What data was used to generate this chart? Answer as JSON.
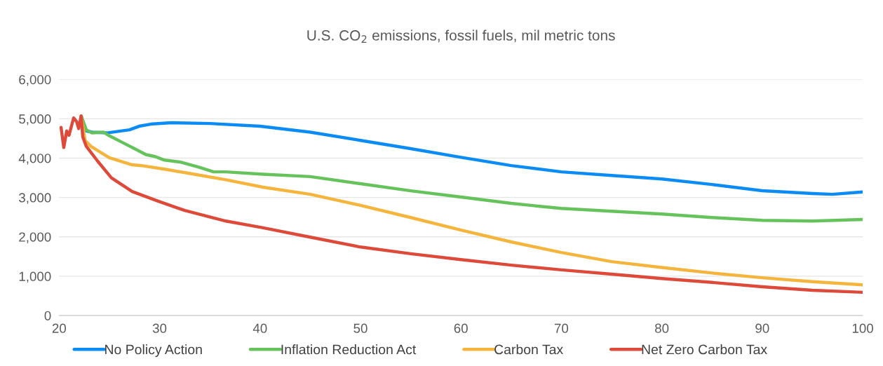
{
  "chart_data": {
    "type": "line",
    "title": "U.S. CO$_{2}$ emissions, fossil fuels, mil metric tons",
    "xlim": [
      20,
      100
    ],
    "xticks": [
      20,
      30,
      40,
      50,
      60,
      70,
      80,
      90,
      100
    ],
    "ylim": [
      0,
      6000
    ],
    "yticks": [
      {
        "value": 0,
        "label": "0"
      },
      {
        "value": 1000,
        "label": "1,000"
      },
      {
        "value": 2000,
        "label": "2,000"
      },
      {
        "value": 3000,
        "label": "3,000"
      },
      {
        "value": 4000,
        "label": "4,000"
      },
      {
        "value": 5000,
        "label": "5,000"
      },
      {
        "value": 6000,
        "label": "6,000"
      }
    ],
    "grid": "y",
    "legend": "bottom",
    "marker": "none",
    "line_style": "solid",
    "series": [
      {
        "name": "No Policy Action",
        "color": "#0b8cf5",
        "x": [
          22.19,
          22.7,
          23.27,
          24.75,
          27.0,
          27.96,
          29.3,
          31.2,
          35,
          40,
          45,
          50,
          55,
          60,
          65,
          70,
          75,
          80,
          85,
          90,
          95,
          97,
          100
        ],
        "values": [
          5070,
          4690,
          4660,
          4640,
          4720,
          4810,
          4870,
          4900,
          4880,
          4810,
          4660,
          4450,
          4240,
          4020,
          3810,
          3650,
          3560,
          3470,
          3330,
          3170,
          3100,
          3080,
          3140
        ]
      },
      {
        "name": "Inflation Reduction Act",
        "color": "#66c35c",
        "x": [
          22.19,
          22.7,
          23.27,
          24.41,
          24.98,
          26.36,
          27.5,
          28.64,
          29.55,
          30.47,
          32.07,
          33.9,
          35.38,
          36.6,
          40.3,
          45,
          50,
          55,
          60,
          65,
          70,
          75,
          80,
          85,
          90,
          95,
          100
        ],
        "values": [
          5070,
          4720,
          4640,
          4660,
          4570,
          4390,
          4240,
          4090,
          4040,
          3950,
          3900,
          3770,
          3650,
          3650,
          3590,
          3530,
          3350,
          3170,
          3010,
          2850,
          2720,
          2650,
          2580,
          2490,
          2420,
          2400,
          2440
        ]
      },
      {
        "name": "Carbon Tax",
        "color": "#f5b53c",
        "x": [
          22.19,
          22.58,
          23.15,
          24.98,
          27.27,
          28.18,
          30.7,
          33.44,
          36.6,
          40.3,
          45,
          50,
          55,
          60,
          65,
          70,
          75,
          80,
          85,
          90,
          95,
          100
        ],
        "values": [
          5070,
          4450,
          4300,
          4010,
          3830,
          3810,
          3710,
          3590,
          3450,
          3260,
          3080,
          2800,
          2490,
          2170,
          1870,
          1600,
          1370,
          1220,
          1080,
          960,
          860,
          780
        ]
      },
      {
        "name": "Net Zero Carbon Tax",
        "color": "#dd4a3a",
        "x": [
          20.19,
          20.46,
          20.75,
          20.98,
          21.44,
          21.74,
          21.94,
          22.19,
          22.35,
          22.7,
          23.84,
          25.2,
          27.27,
          29.8,
          32.5,
          36.6,
          40.3,
          45,
          50,
          55,
          60,
          65,
          70,
          75,
          80,
          85,
          90,
          95,
          100
        ],
        "values": [
          4780,
          4270,
          4690,
          4580,
          5020,
          4930,
          4750,
          5070,
          4540,
          4300,
          3920,
          3500,
          3150,
          2910,
          2670,
          2400,
          2230,
          1990,
          1740,
          1570,
          1420,
          1280,
          1160,
          1050,
          940,
          840,
          730,
          640,
          590
        ]
      }
    ]
  }
}
